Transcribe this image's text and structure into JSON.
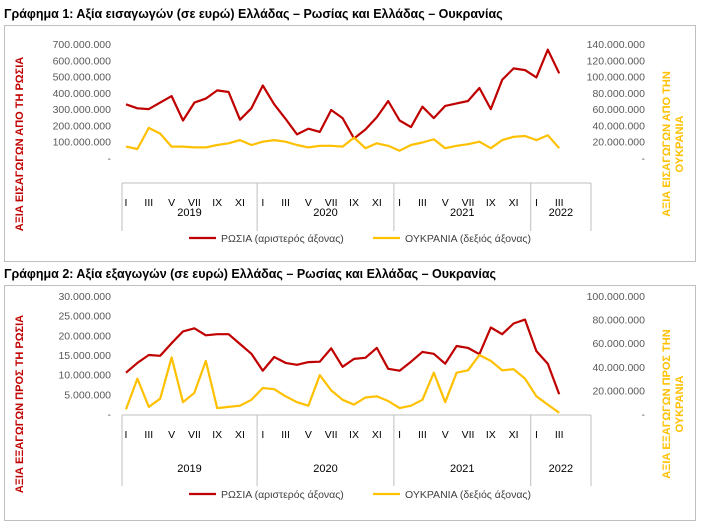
{
  "colors": {
    "russia": "#c00000",
    "ukraine": "#ffc000",
    "axis": "#bfbfbf"
  },
  "chart_data": [
    {
      "type": "line",
      "title": "Γράφημα 1: Αξία εισαγωγών (σε ευρώ) Ελλάδας – Ρωσίας και Ελλάδας – Ουκρανίας",
      "ylabel_left": "ΑΞΙΑ ΕΙΣΑΓΩΓΩΝ ΑΠΟ ΤΗ ΡΩΣΙΑ",
      "ylabel_right": "ΑΞΙΑ ΕΙΣΑΓΩΓΩΝ ΑΠΟ ΤΗΝ ΟΥΚΡΑΝΙΑ",
      "ylim_left": [
        0,
        700000000
      ],
      "ylim_right": [
        0,
        140000000
      ],
      "left_ticks": [
        "-",
        "100.000.000",
        "200.000.000",
        "300.000.000",
        "400.000.000",
        "500.000.000",
        "600.000.000",
        "700.000.000"
      ],
      "right_ticks": [
        "-",
        "20.000.000",
        "40.000.000",
        "60.000.000",
        "80.000.000",
        "100.000.000",
        "120.000.000",
        "140.000.000"
      ],
      "month_labels": [
        "I",
        "III",
        "V",
        "VII",
        "IX",
        "XI",
        "I",
        "III",
        "V",
        "VII",
        "IX",
        "XI",
        "I",
        "III",
        "V",
        "VII",
        "IX",
        "XI",
        "I",
        "III"
      ],
      "years": [
        "2019",
        "2020",
        "2021",
        "2022"
      ],
      "legend": [
        "ΡΩΣΙΑ (αριστερός άξονας)",
        "ΟΥΚΡΑΝΙΑ (δεξιός άξονας)"
      ],
      "series": [
        {
          "name": "ΡΩΣΙΑ (αριστερός άξονας)",
          "axis": "left",
          "values": [
            330000000,
            305000000,
            300000000,
            340000000,
            380000000,
            230000000,
            340000000,
            365000000,
            415000000,
            405000000,
            235000000,
            305000000,
            445000000,
            330000000,
            240000000,
            145000000,
            180000000,
            160000000,
            295000000,
            245000000,
            120000000,
            175000000,
            250000000,
            350000000,
            230000000,
            190000000,
            315000000,
            245000000,
            320000000,
            335000000,
            350000000,
            430000000,
            300000000,
            480000000,
            550000000,
            540000000,
            495000000,
            665000000,
            520000000
          ]
        },
        {
          "name": "ΟΥΚΡΑΝΙΑ (δεξιός άξονας)",
          "axis": "right",
          "values": [
            14000000,
            11000000,
            37000000,
            30000000,
            14000000,
            14000000,
            13000000,
            13000000,
            16000000,
            18000000,
            22000000,
            16000000,
            20000000,
            22000000,
            20000000,
            16000000,
            13000000,
            15000000,
            15000000,
            14000000,
            25000000,
            12000000,
            18000000,
            15000000,
            9000000,
            16000000,
            19000000,
            23000000,
            12000000,
            15000000,
            17000000,
            20000000,
            12000000,
            22000000,
            26000000,
            27000000,
            22000000,
            28000000,
            12000000
          ]
        }
      ]
    },
    {
      "type": "line",
      "title": "Γράφημα 2: Αξία εξαγωγών (σε ευρώ) Ελλάδας – Ρωσίας και Ελλάδας – Ουκρανίας",
      "ylabel_left": "ΑΞΙΑ ΕΞΑΓΩΓΩΝ ΠΡΟΣ ΤΗ ΡΩΣΙΑ",
      "ylabel_right": "ΑΞΙΑ ΕΞΑΓΩΓΩΝ ΠΡΟΣ ΤΗΝ ΟΥΚΡΑΝΙΑ",
      "ylim_left": [
        0,
        30000000
      ],
      "ylim_right": [
        0,
        100000000
      ],
      "left_ticks": [
        "-",
        "5.000.000",
        "10.000.000",
        "15.000.000",
        "20.000.000",
        "25.000.000",
        "30.000.000"
      ],
      "right_ticks": [
        "-",
        "20.000.000",
        "40.000.000",
        "60.000.000",
        "80.000.000",
        "100.000.000"
      ],
      "month_labels": [
        "I",
        "III",
        "V",
        "VII",
        "IX",
        "XI",
        "I",
        "III",
        "V",
        "VII",
        "IX",
        "XI",
        "I",
        "III",
        "V",
        "VII",
        "IX",
        "XI",
        "I",
        "III"
      ],
      "years": [
        "2019",
        "2020",
        "2021",
        "2022"
      ],
      "legend": [
        "ΡΩΣΙΑ (αριστερός άξονας)",
        "ΟΥΚΡΑΝΙΑ (δεξιός άξονας)"
      ],
      "series": [
        {
          "name": "ΡΩΣΙΑ (αριστερός άξονας)",
          "axis": "left",
          "values": [
            10500000,
            13000000,
            15000000,
            14800000,
            18000000,
            21000000,
            21800000,
            20000000,
            20300000,
            20300000,
            17800000,
            15300000,
            11000000,
            14500000,
            13000000,
            12500000,
            13200000,
            13300000,
            16700000,
            12000000,
            14000000,
            14300000,
            16800000,
            11500000,
            11000000,
            13300000,
            15800000,
            15300000,
            12800000,
            17300000,
            16800000,
            15200000,
            22000000,
            20300000,
            23000000,
            24000000,
            16000000,
            12800000,
            5000000
          ]
        },
        {
          "name": "ΟΥΚΡΑΝΙΑ (δεξιός άξονας)",
          "axis": "right",
          "values": [
            4000000,
            30000000,
            6000000,
            13000000,
            48000000,
            10000000,
            18000000,
            45000000,
            5000000,
            6000000,
            7000000,
            12000000,
            22000000,
            21000000,
            15000000,
            10000000,
            7000000,
            33000000,
            20000000,
            12000000,
            8000000,
            14000000,
            15000000,
            11000000,
            5000000,
            7000000,
            12000000,
            35000000,
            10000000,
            35000000,
            37000000,
            50000000,
            45000000,
            37000000,
            38000000,
            30000000,
            15000000,
            8000000,
            1000000
          ]
        }
      ]
    }
  ]
}
